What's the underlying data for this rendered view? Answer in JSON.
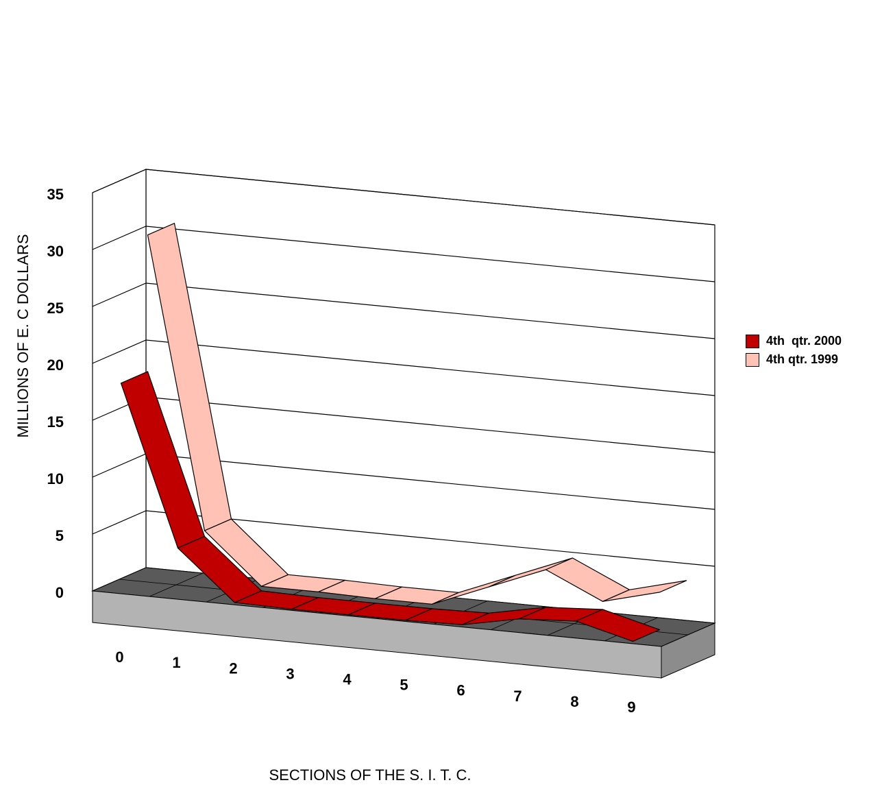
{
  "chart_data": {
    "type": "line",
    "style": "3d-ribbon",
    "xlabel": "SECTIONS OF THE S. I. T. C.",
    "ylabel": "MILLIONS OF E. C DOLLARS",
    "categories": [
      "0",
      "1",
      "2",
      "3",
      "4",
      "5",
      "6",
      "7",
      "8",
      "9"
    ],
    "ylim": [
      0,
      35
    ],
    "yticks": [
      "0",
      "5",
      "10",
      "15",
      "20",
      "25",
      "30",
      "35"
    ],
    "grid": true,
    "legend_position": "right",
    "series": [
      {
        "name": "4th  qtr. 2000",
        "color": "#c00000",
        "values": [
          18.5,
          4.5,
          0.2,
          0.1,
          0.1,
          0.1,
          0.2,
          1.2,
          1.5,
          0.2
        ]
      },
      {
        "name": "4th qtr. 1999",
        "color": "#ffc2b5",
        "values": [
          30.5,
          5.0,
          0.6,
          0.6,
          0.5,
          0.5,
          2.5,
          4.5,
          2.2,
          3.5
        ]
      }
    ]
  }
}
